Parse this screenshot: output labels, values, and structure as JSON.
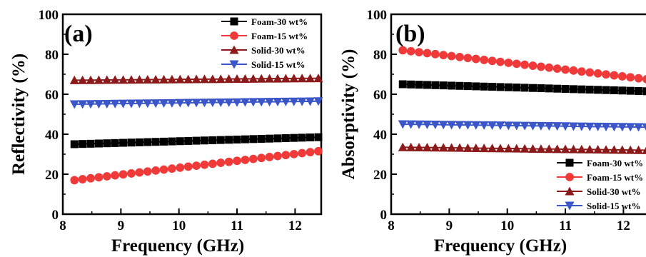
{
  "colors": {
    "Foam-30 wt%": "#000000",
    "Foam-15 wt%": "#f03a3a",
    "Solid-30 wt%": "#8c1a1a",
    "Solid-15 wt%": "#3a56c8"
  },
  "markers": {
    "Foam-30 wt%": "square",
    "Foam-15 wt%": "circle",
    "Solid-30 wt%": "triangle-up",
    "Solid-15 wt%": "triangle-down"
  },
  "chart_data": [
    {
      "type": "line",
      "panel_label": "(a)",
      "xlabel": "Frequency (GHz)",
      "ylabel": "Reflectivity (%)",
      "xlim": [
        8,
        12.45
      ],
      "ylim": [
        0,
        100
      ],
      "xticks": [
        8,
        9,
        10,
        11,
        12
      ],
      "yticks": [
        0,
        20,
        40,
        60,
        80,
        100
      ],
      "legend_position": "top-right",
      "x": [
        8.2,
        12.4
      ],
      "series": [
        {
          "name": "Foam-30 wt%",
          "values": [
            35,
            38.5
          ]
        },
        {
          "name": "Foam-15 wt%",
          "values": [
            17,
            31.5
          ]
        },
        {
          "name": "Solid-30 wt%",
          "values": [
            67,
            68
          ]
        },
        {
          "name": "Solid-15 wt%",
          "values": [
            55,
            56.5
          ]
        }
      ]
    },
    {
      "type": "line",
      "panel_label": "(b)",
      "xlabel": "Frequency (GHz)",
      "ylabel": "Absorptivity (%)",
      "xlim": [
        8,
        12.45
      ],
      "ylim": [
        0,
        100
      ],
      "xticks": [
        8,
        9,
        10,
        11,
        12
      ],
      "yticks": [
        0,
        20,
        40,
        60,
        80,
        100
      ],
      "legend_position": "bottom-right",
      "x": [
        8.2,
        12.4
      ],
      "series": [
        {
          "name": "Foam-30 wt%",
          "values": [
            65,
            61.5
          ]
        },
        {
          "name": "Foam-15 wt%",
          "values": [
            82,
            67.5
          ]
        },
        {
          "name": "Solid-30 wt%",
          "values": [
            33.5,
            32
          ]
        },
        {
          "name": "Solid-15 wt%",
          "values": [
            45,
            43.5
          ]
        }
      ]
    }
  ]
}
